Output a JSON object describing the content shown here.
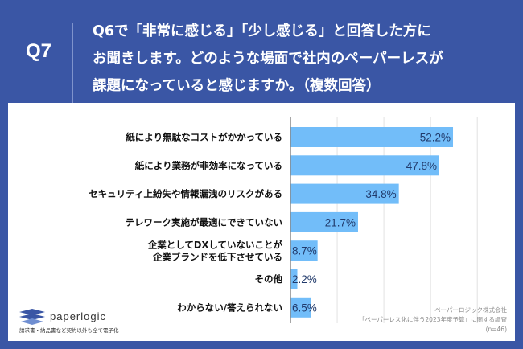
{
  "header": {
    "qnum": "Q7",
    "question": "Q6で「非常に感じる」「少し感じる」と回答した方に\nお聞きします。どのような場面で社内のペーパーレスが\n課題になっていると感じますか。（複数回答）"
  },
  "chart_data": {
    "type": "bar",
    "orientation": "horizontal",
    "categories": [
      "紙により無駄なコストがかかっている",
      "紙により業務が非効率になっている",
      "セキュリティ上紛失や情報漏洩のリスクがある",
      "テレワーク実施が最適にできていない",
      "企業としてDXしていないことが\n企業ブランドを低下させている",
      "その他",
      "わからない/答えられない"
    ],
    "values": [
      52.2,
      47.8,
      34.8,
      21.7,
      8.7,
      2.2,
      6.5
    ],
    "labels": [
      "52.2%",
      "47.8%",
      "34.8%",
      "21.7%",
      "8.7%",
      "2.2%",
      "6.5%"
    ],
    "xlim": [
      0,
      60
    ],
    "gridlines": [
      15,
      30,
      45,
      60
    ],
    "grid": true,
    "bar_color": "#72bdf9"
  },
  "footer": {
    "logo": "paperlogic",
    "logo_sub": "請求書・納品書など契約以外も全て電子化",
    "source_line1": "ペーパーロジック株式会社",
    "source_line2": "「ペーパーレス化に伴う2023年度予算」に関する調査",
    "n": "(n=46)"
  }
}
